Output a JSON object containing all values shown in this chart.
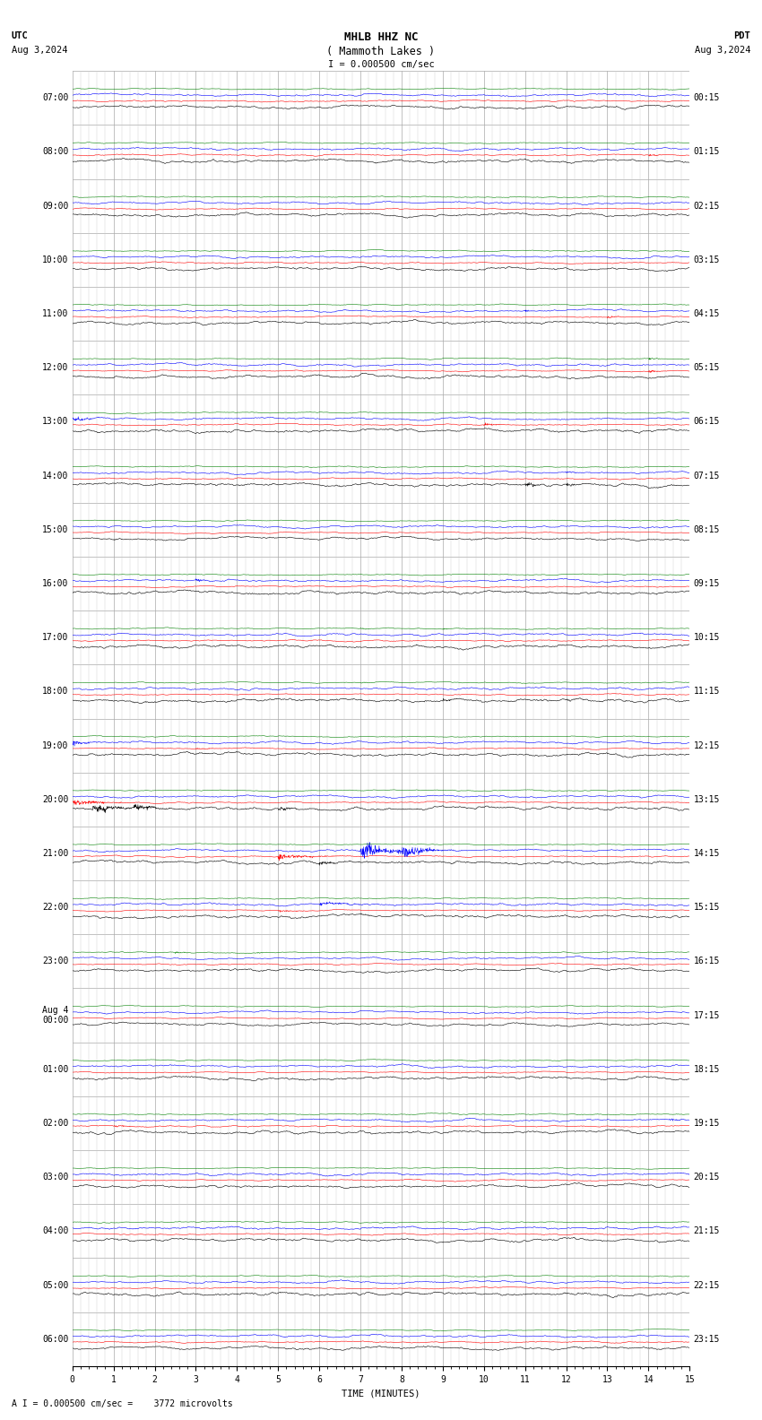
{
  "title_line1": "MHLB HHZ NC",
  "title_line2": "( Mammoth Lakes )",
  "scale_label": "I = 0.000500 cm/sec",
  "bottom_label": "A I = 0.000500 cm/sec =    3772 microvolts",
  "utc_label": "UTC",
  "utc_date": "Aug 3,2024",
  "pdt_label": "PDT",
  "pdt_date": "Aug 3,2024",
  "xlabel": "TIME (MINUTES)",
  "left_times": [
    "07:00",
    "08:00",
    "09:00",
    "10:00",
    "11:00",
    "12:00",
    "13:00",
    "14:00",
    "15:00",
    "16:00",
    "17:00",
    "18:00",
    "19:00",
    "20:00",
    "21:00",
    "22:00",
    "23:00",
    "Aug 4\n00:00",
    "01:00",
    "02:00",
    "03:00",
    "04:00",
    "05:00",
    "06:00"
  ],
  "right_times": [
    "00:15",
    "01:15",
    "02:15",
    "03:15",
    "04:15",
    "05:15",
    "06:15",
    "07:15",
    "08:15",
    "09:15",
    "10:15",
    "11:15",
    "12:15",
    "13:15",
    "14:15",
    "15:15",
    "16:15",
    "17:15",
    "18:15",
    "19:15",
    "20:15",
    "21:15",
    "22:15",
    "23:15"
  ],
  "n_rows": 24,
  "n_traces_per_row": 4,
  "minutes": 15,
  "bg_color": "#ffffff",
  "grid_color": "#aaaaaa",
  "trace_colors": [
    "#000000",
    "#ff0000",
    "#0000ff",
    "#008000"
  ],
  "title_fontsize": 9,
  "label_fontsize": 7.5,
  "tick_fontsize": 7
}
